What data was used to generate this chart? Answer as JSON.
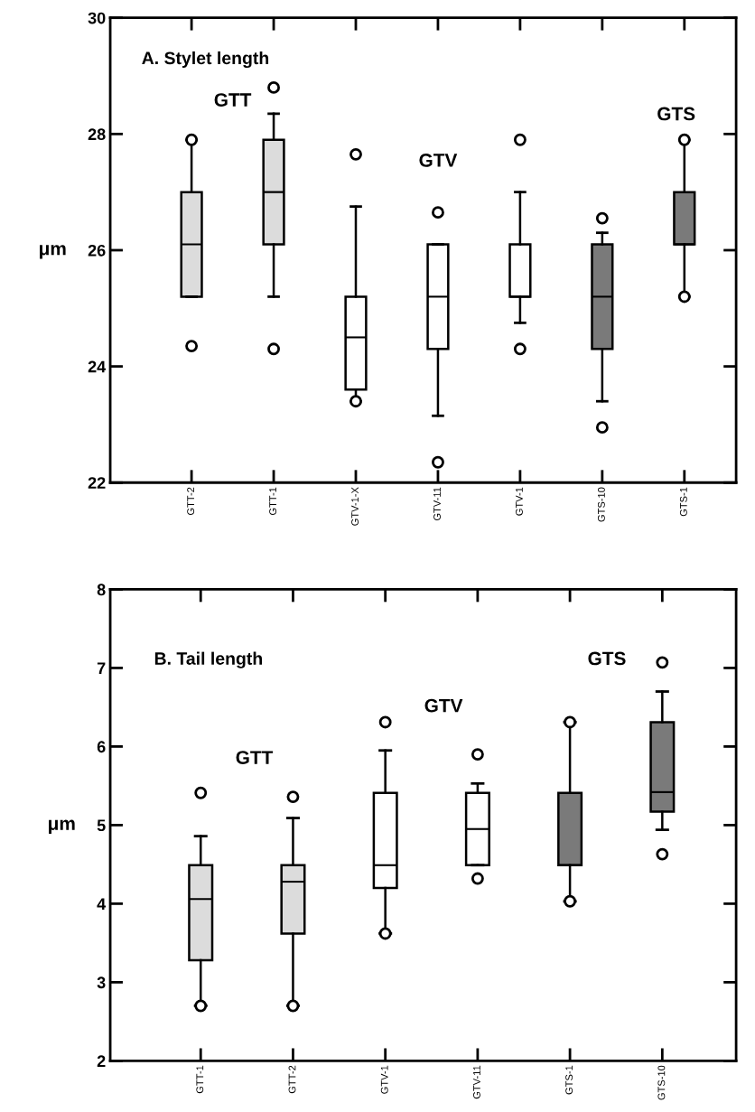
{
  "chart_data": [
    {
      "type": "box",
      "title": "A. Stylet length",
      "ylabel": "μm",
      "categories": [
        "GTT-2",
        "GTT-1",
        "GTV-1-X",
        "GTV-11",
        "GTV-1",
        "GTS-10",
        "GTS-1"
      ],
      "colors": [
        "#dcdcdc",
        "#dcdcdc",
        "#ffffff",
        "#ffffff",
        "#ffffff",
        "#7a7a7a",
        "#7a7a7a"
      ],
      "boxes": [
        {
          "low": 25.2,
          "q1": 25.2,
          "median": 26.1,
          "q3": 27.0,
          "high": 27.9,
          "outliers": [
            27.9,
            24.35
          ]
        },
        {
          "low": 25.2,
          "q1": 26.1,
          "median": 27.0,
          "q3": 27.9,
          "high": 28.35,
          "outliers": [
            28.8,
            24.3
          ]
        },
        {
          "low": 23.4,
          "q1": 23.6,
          "median": 24.5,
          "q3": 25.2,
          "high": 26.75,
          "outliers": [
            27.65,
            23.4
          ]
        },
        {
          "low": 23.15,
          "q1": 24.3,
          "median": 25.2,
          "q3": 26.1,
          "high": 26.1,
          "outliers": [
            26.65,
            22.35
          ]
        },
        {
          "low": 24.75,
          "q1": 25.2,
          "median": 25.2,
          "q3": 26.1,
          "high": 27.0,
          "outliers": [
            27.9,
            24.3
          ]
        },
        {
          "low": 23.4,
          "q1": 24.3,
          "median": 25.2,
          "q3": 26.1,
          "high": 26.3,
          "outliers": [
            26.55,
            22.95
          ]
        },
        {
          "low": 25.2,
          "q1": 26.1,
          "median": 26.1,
          "q3": 27.0,
          "high": 27.9,
          "outliers": [
            27.9,
            25.2
          ]
        }
      ],
      "ylim": [
        22,
        30
      ],
      "yticks": [
        22,
        24,
        26,
        28,
        30
      ],
      "marker": "circle",
      "grid": false,
      "legend": false,
      "annotations": [
        "GTT",
        "GTV",
        "GTS"
      ]
    },
    {
      "type": "box",
      "title": "B. Tail length",
      "ylabel": "μm",
      "categories": [
        "GTT-1",
        "GTT-2",
        "GTV-1",
        "GTV-11",
        "GTS-1",
        "GTS-10"
      ],
      "colors": [
        "#dcdcdc",
        "#dcdcdc",
        "#ffffff",
        "#ffffff",
        "#7a7a7a",
        "#7a7a7a"
      ],
      "boxes": [
        {
          "low": 2.7,
          "q1": 3.28,
          "median": 4.06,
          "q3": 4.49,
          "high": 4.86,
          "outliers": [
            5.41,
            2.7
          ]
        },
        {
          "low": 2.7,
          "q1": 3.62,
          "median": 4.28,
          "q3": 4.49,
          "high": 5.09,
          "outliers": [
            5.36,
            2.7
          ]
        },
        {
          "low": 3.62,
          "q1": 4.2,
          "median": 4.49,
          "q3": 5.41,
          "high": 5.95,
          "outliers": [
            6.31,
            3.62
          ]
        },
        {
          "low": 4.49,
          "q1": 4.49,
          "median": 4.95,
          "q3": 5.41,
          "high": 5.53,
          "outliers": [
            5.9,
            4.32
          ]
        },
        {
          "low": 4.03,
          "q1": 4.49,
          "median": 4.49,
          "q3": 5.41,
          "high": 6.31,
          "outliers": [
            6.31,
            4.03
          ]
        },
        {
          "low": 4.94,
          "q1": 5.17,
          "median": 5.42,
          "q3": 6.31,
          "high": 6.7,
          "outliers": [
            7.07,
            4.63
          ]
        }
      ],
      "ylim": [
        2,
        8
      ],
      "yticks": [
        2,
        3,
        4,
        5,
        6,
        7,
        8
      ],
      "marker": "circle",
      "grid": false,
      "legend": false,
      "annotations": [
        "GTT",
        "GTV",
        "GTS"
      ]
    }
  ]
}
